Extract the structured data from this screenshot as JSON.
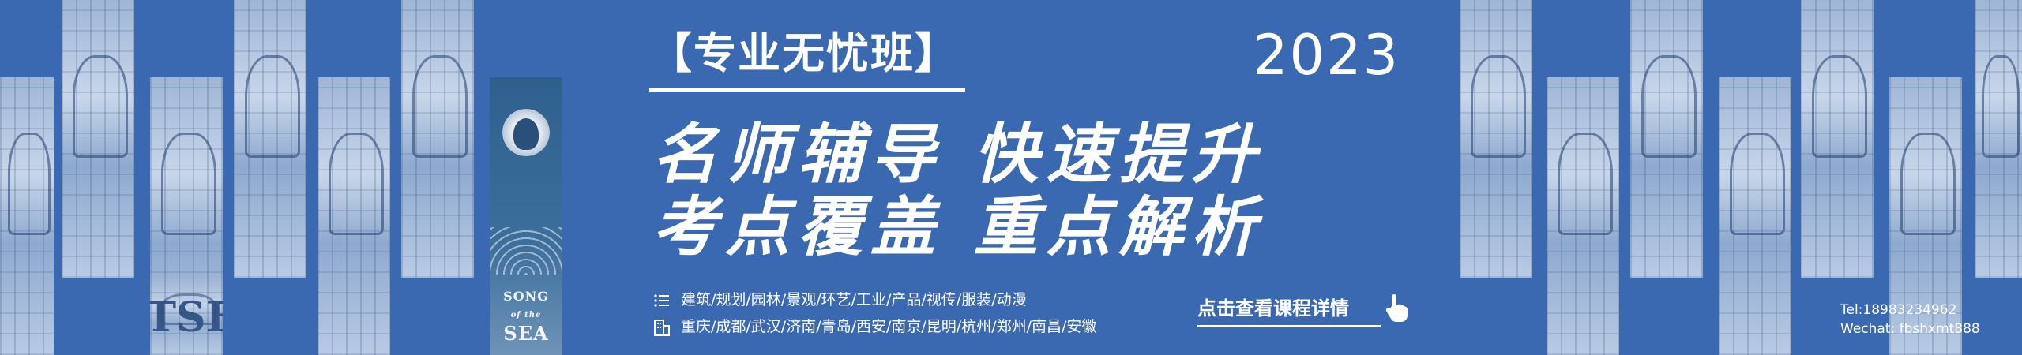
{
  "banner": {
    "tag": "【专业无忧班】",
    "year": "2023",
    "slogan_line1": "名师辅导 快速提升",
    "slogan_line2": "考点覆盖 重点解析",
    "majors": "建筑/规划/园林/景观/环艺/工业/产品/视传/服装/动漫",
    "cities": "重庆/成都/武汉/济南/青岛/西安/南京/昆明/杭州/郑州/南昌/安徽",
    "cta": "点击查看课程详情",
    "tel": "Tel:18983234962",
    "wechat": "Wechat: fbshxmt888",
    "poster": {
      "title1": "SONG",
      "title2": "of the",
      "title3": "SEA"
    },
    "side_text": "ITSFO",
    "colors": {
      "background": "#3a69b2",
      "text": "#ffffff"
    },
    "icons": [
      "list-icon",
      "building-icon",
      "hand-pointer-icon"
    ]
  }
}
